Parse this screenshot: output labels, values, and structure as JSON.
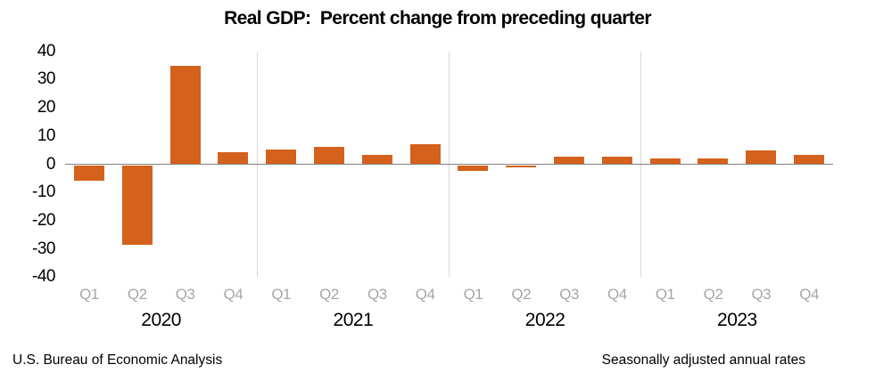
{
  "chart": {
    "title": "Real GDP:  Percent change from preceding quarter"
  },
  "footer": {
    "left": "U.S. Bureau of Economic Analysis",
    "right": "Seasonally adjusted annual rates"
  },
  "chart_data": {
    "type": "bar",
    "title": "Real GDP:  Percent change from preceding quarter",
    "xlabel": "",
    "ylabel": "Percent change (seasonally adjusted annual rate)",
    "ylim": [
      -40,
      40
    ],
    "yticks": [
      40,
      30,
      20,
      10,
      0,
      -10,
      -20,
      -30,
      -40
    ],
    "grid": "vertical separators between years only",
    "legend_position": "none",
    "bar_color": "#d4611c",
    "quarter_label_color": "#a6a6a6",
    "separator_color": "#d9d9d9",
    "zero_line_color": "#808080",
    "categories": [
      "Q1",
      "Q2",
      "Q3",
      "Q4",
      "Q1",
      "Q2",
      "Q3",
      "Q4",
      "Q1",
      "Q2",
      "Q3",
      "Q4",
      "Q1",
      "Q2",
      "Q3",
      "Q4"
    ],
    "values": [
      -5.3,
      -28.0,
      34.8,
      4.2,
      5.2,
      6.2,
      3.3,
      7.0,
      -2.0,
      -0.6,
      2.7,
      2.6,
      2.2,
      2.1,
      4.9,
      3.2
    ],
    "years": [
      {
        "label": "2020",
        "quarters": [
          "Q1",
          "Q2",
          "Q3",
          "Q4"
        ],
        "values": [
          -5.3,
          -28.0,
          34.8,
          4.2
        ]
      },
      {
        "label": "2021",
        "quarters": [
          "Q1",
          "Q2",
          "Q3",
          "Q4"
        ],
        "values": [
          5.2,
          6.2,
          3.3,
          7.0
        ]
      },
      {
        "label": "2022",
        "quarters": [
          "Q1",
          "Q2",
          "Q3",
          "Q4"
        ],
        "values": [
          -2.0,
          -0.6,
          2.7,
          2.6
        ]
      },
      {
        "label": "2023",
        "quarters": [
          "Q1",
          "Q2",
          "Q3",
          "Q4"
        ],
        "values": [
          2.2,
          2.1,
          4.9,
          3.2
        ]
      }
    ]
  }
}
